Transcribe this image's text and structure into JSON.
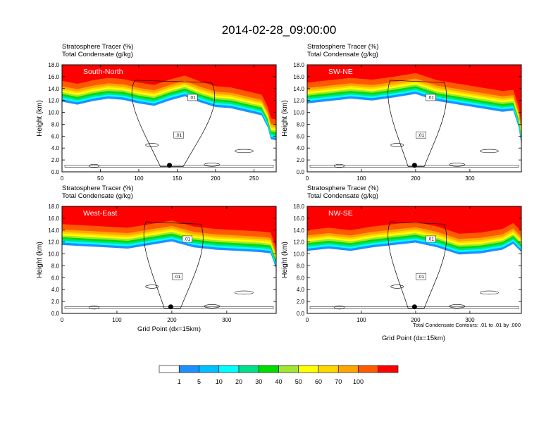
{
  "figure": {
    "title": "2014-02-28_09:00:00",
    "header_line1": "Stratosphere Tracer   (%)",
    "header_line2": "Total Condensate   (g/kg)",
    "y_axis_label": "Height (km)",
    "x_axis_label": "Grid Point (dx=15km)",
    "contour_note": "Total Condensate Contours: .01 to .01 by .000",
    "contour_label": ".01"
  },
  "chart_data": [
    {
      "type": "heatmap",
      "name": "South-North",
      "xlim": [
        0,
        279
      ],
      "x_ticks": [
        0,
        50,
        100,
        150,
        200,
        250
      ],
      "ylim": [
        0,
        18
      ],
      "y_ticks": [
        0,
        2,
        4,
        6,
        8,
        10,
        12,
        14,
        16,
        18
      ],
      "y_tick_labels": [
        "0.0",
        "2.0",
        "4.0",
        "6.0",
        "8.0",
        "10.0",
        "12.0",
        "14.0",
        "16.0",
        "18.0"
      ],
      "marker": {
        "x": 140,
        "y": 1.1
      },
      "tracer_boundary": [
        [
          0,
          15.3
        ],
        [
          20,
          14.8
        ],
        [
          40,
          15.4
        ],
        [
          60,
          15.8
        ],
        [
          80,
          15.6
        ],
        [
          100,
          15.0
        ],
        [
          120,
          14.6
        ],
        [
          140,
          15.5
        ],
        [
          160,
          16.2
        ],
        [
          180,
          15.2
        ],
        [
          200,
          14.4
        ],
        [
          220,
          14.2
        ],
        [
          240,
          13.6
        ],
        [
          260,
          13.0
        ],
        [
          268,
          11.0
        ],
        [
          272,
          9.0
        ],
        [
          279,
          8.8
        ]
      ]
    },
    {
      "type": "heatmap",
      "name": "SW-NE",
      "xlim": [
        0,
        395
      ],
      "x_ticks": [
        0,
        100,
        200,
        300
      ],
      "ylim": [
        0,
        18
      ],
      "y_ticks": [
        0,
        2,
        4,
        6,
        8,
        10,
        12,
        14,
        16,
        18
      ],
      "y_tick_labels": [
        "0.0",
        "2.0",
        "4.0",
        "6.0",
        "8.0",
        "10.0",
        "12.0",
        "14.0",
        "16.0",
        "18.0"
      ],
      "marker": {
        "x": 198,
        "y": 1.1
      },
      "tracer_boundary": [
        [
          0,
          15.0
        ],
        [
          40,
          15.4
        ],
        [
          80,
          15.8
        ],
        [
          120,
          15.5
        ],
        [
          160,
          16.0
        ],
        [
          200,
          16.6
        ],
        [
          240,
          15.4
        ],
        [
          280,
          14.8
        ],
        [
          320,
          14.2
        ],
        [
          360,
          13.6
        ],
        [
          380,
          13.8
        ],
        [
          390,
          11.0
        ],
        [
          395,
          8.0
        ]
      ]
    },
    {
      "type": "heatmap",
      "name": "West-East",
      "xlim": [
        0,
        390
      ],
      "x_ticks": [
        0,
        100,
        200,
        300
      ],
      "ylim": [
        0,
        18
      ],
      "y_ticks": [
        0,
        2,
        4,
        6,
        8,
        10,
        12,
        14,
        16,
        18
      ],
      "y_tick_labels": [
        "0.0",
        "2.0",
        "4.0",
        "6.0",
        "8.0",
        "10.0",
        "12.0",
        "14.0",
        "16.0",
        "18.0"
      ],
      "marker": {
        "x": 198,
        "y": 1.1
      },
      "tracer_boundary": [
        [
          0,
          15.0
        ],
        [
          40,
          14.8
        ],
        [
          80,
          14.6
        ],
        [
          120,
          14.4
        ],
        [
          160,
          15.0
        ],
        [
          200,
          15.6
        ],
        [
          240,
          14.6
        ],
        [
          280,
          14.2
        ],
        [
          320,
          14.0
        ],
        [
          360,
          13.8
        ],
        [
          380,
          13.6
        ],
        [
          390,
          11.0
        ]
      ]
    },
    {
      "type": "heatmap",
      "name": "NW-SE",
      "xlim": [
        0,
        395
      ],
      "x_ticks": [
        0,
        100,
        200,
        300
      ],
      "ylim": [
        0,
        18
      ],
      "y_ticks": [
        0,
        2,
        4,
        6,
        8,
        10,
        12,
        14,
        16,
        18
      ],
      "y_tick_labels": [
        "0.0",
        "2.0",
        "4.0",
        "6.0",
        "8.0",
        "10.0",
        "12.0",
        "14.0",
        "16.0",
        "18.0"
      ],
      "marker": {
        "x": 198,
        "y": 1.1
      },
      "tracer_boundary": [
        [
          0,
          14.0
        ],
        [
          40,
          14.4
        ],
        [
          80,
          14.0
        ],
        [
          120,
          14.6
        ],
        [
          160,
          15.0
        ],
        [
          200,
          15.4
        ],
        [
          240,
          14.6
        ],
        [
          280,
          13.4
        ],
        [
          320,
          13.6
        ],
        [
          360,
          14.2
        ],
        [
          380,
          15.2
        ],
        [
          395,
          13.8
        ]
      ]
    }
  ],
  "colorbar": {
    "labels": [
      "1",
      "5",
      "10",
      "20",
      "30",
      "40",
      "50",
      "60",
      "70",
      "100"
    ],
    "colors": [
      "#ffffff",
      "#1e90ff",
      "#00bfff",
      "#00ffff",
      "#00e08c",
      "#00dc00",
      "#a0e632",
      "#ffff00",
      "#ffd700",
      "#ffa500",
      "#ff5a00",
      "#ff0000"
    ]
  }
}
